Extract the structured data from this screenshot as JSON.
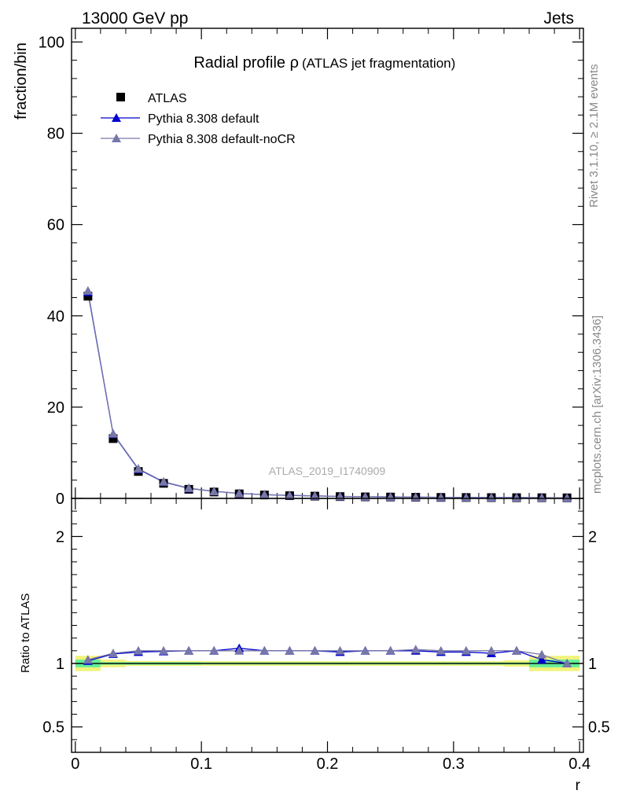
{
  "header": {
    "left": "13000 GeV pp",
    "right": "Jets"
  },
  "side_labels": {
    "top": "Rivet 3.1.10, ≥ 2.1M events",
    "bottom": "mcplots.cern.ch [arXiv:1306.3436]"
  },
  "chart_data": [
    {
      "type": "scatter",
      "title": "Radial profile ρ",
      "subtitle": "(ATLAS jet fragmentation)",
      "ylabel": "fraction/bin",
      "annotation": "ATLAS_2019_I1740909",
      "ylim": [
        0,
        103
      ],
      "yticks": [
        0,
        20,
        40,
        60,
        80,
        100
      ],
      "ytick_labels": [
        "0",
        "20",
        "40",
        "60",
        "80",
        "100"
      ],
      "legend": {
        "placement": "top-left",
        "entries": [
          "ATLAS",
          "Pythia 8.308 default",
          "Pythia 8.308 default-noCR"
        ]
      },
      "x": [
        0.01,
        0.03,
        0.05,
        0.07,
        0.09,
        0.11,
        0.13,
        0.15,
        0.17,
        0.19,
        0.21,
        0.23,
        0.25,
        0.27,
        0.29,
        0.31,
        0.33,
        0.35,
        0.37,
        0.39
      ],
      "series": [
        {
          "name": "ATLAS",
          "marker": "square",
          "color": "#000000",
          "values": [
            44.3,
            13.1,
            5.9,
            3.3,
            2.0,
            1.4,
            1.0,
            0.75,
            0.6,
            0.5,
            0.4,
            0.34,
            0.3,
            0.26,
            0.22,
            0.2,
            0.18,
            0.16,
            0.15,
            0.13
          ]
        },
        {
          "name": "Pythia 8.308 default",
          "marker": "triangle",
          "color": "#0000cc",
          "values": [
            45.2,
            14.1,
            6.4,
            3.6,
            2.2,
            1.55,
            1.1,
            0.82,
            0.66,
            0.55,
            0.43,
            0.37,
            0.33,
            0.28,
            0.24,
            0.22,
            0.2,
            0.18,
            0.16,
            0.13
          ]
        },
        {
          "name": "Pythia 8.308 default-noCR",
          "marker": "triangle",
          "color": "#7777aa",
          "values": [
            45.5,
            14.2,
            6.5,
            3.65,
            2.25,
            1.56,
            1.1,
            0.83,
            0.67,
            0.55,
            0.44,
            0.37,
            0.33,
            0.29,
            0.24,
            0.22,
            0.2,
            0.18,
            0.16,
            0.13
          ]
        }
      ]
    },
    {
      "type": "line",
      "ylabel": "Ratio to ATLAS",
      "xlabel": "r",
      "xlim": [
        -0.003,
        0.403
      ],
      "xticks": [
        0,
        0.1,
        0.2,
        0.3,
        0.4
      ],
      "xtick_labels": [
        "0",
        "0.1",
        "0.2",
        "0.3",
        "0.4"
      ],
      "ylim": [
        0.3,
        2.3
      ],
      "yticks": [
        0.5,
        1,
        2
      ],
      "ytick_labels": [
        "0.5",
        "1",
        "2"
      ],
      "bin_edges": [
        0,
        0.02,
        0.04,
        0.06,
        0.08,
        0.1,
        0.12,
        0.14,
        0.16,
        0.18,
        0.2,
        0.22,
        0.24,
        0.26,
        0.28,
        0.3,
        0.32,
        0.34,
        0.36,
        0.38,
        0.4
      ],
      "band_inner_halfwidth": [
        0.03,
        0.01,
        0.01,
        0.01,
        0.01,
        0.008,
        0.008,
        0.008,
        0.008,
        0.008,
        0.008,
        0.008,
        0.008,
        0.008,
        0.008,
        0.008,
        0.008,
        0.008,
        0.03,
        0.03
      ],
      "band_outer_halfwidth": [
        0.06,
        0.03,
        0.02,
        0.02,
        0.02,
        0.018,
        0.018,
        0.018,
        0.018,
        0.018,
        0.018,
        0.018,
        0.018,
        0.018,
        0.018,
        0.018,
        0.018,
        0.025,
        0.06,
        0.06
      ],
      "band_colors": {
        "inner": "#66ee99",
        "outer": "#f2f27a"
      },
      "reference_value": 1,
      "series": [
        {
          "name": "Pythia 8.308 default",
          "color": "#0000cc",
          "values": [
            1.02,
            1.075,
            1.09,
            1.095,
            1.1,
            1.1,
            1.12,
            1.1,
            1.1,
            1.1,
            1.09,
            1.1,
            1.1,
            1.1,
            1.09,
            1.09,
            1.08,
            1.1,
            1.03,
            1.0
          ]
        },
        {
          "name": "Pythia 8.308 default-noCR",
          "color": "#7777aa",
          "values": [
            1.03,
            1.08,
            1.1,
            1.1,
            1.1,
            1.1,
            1.1,
            1.1,
            1.1,
            1.1,
            1.1,
            1.1,
            1.1,
            1.11,
            1.1,
            1.1,
            1.1,
            1.1,
            1.07,
            1.0
          ]
        }
      ]
    }
  ]
}
